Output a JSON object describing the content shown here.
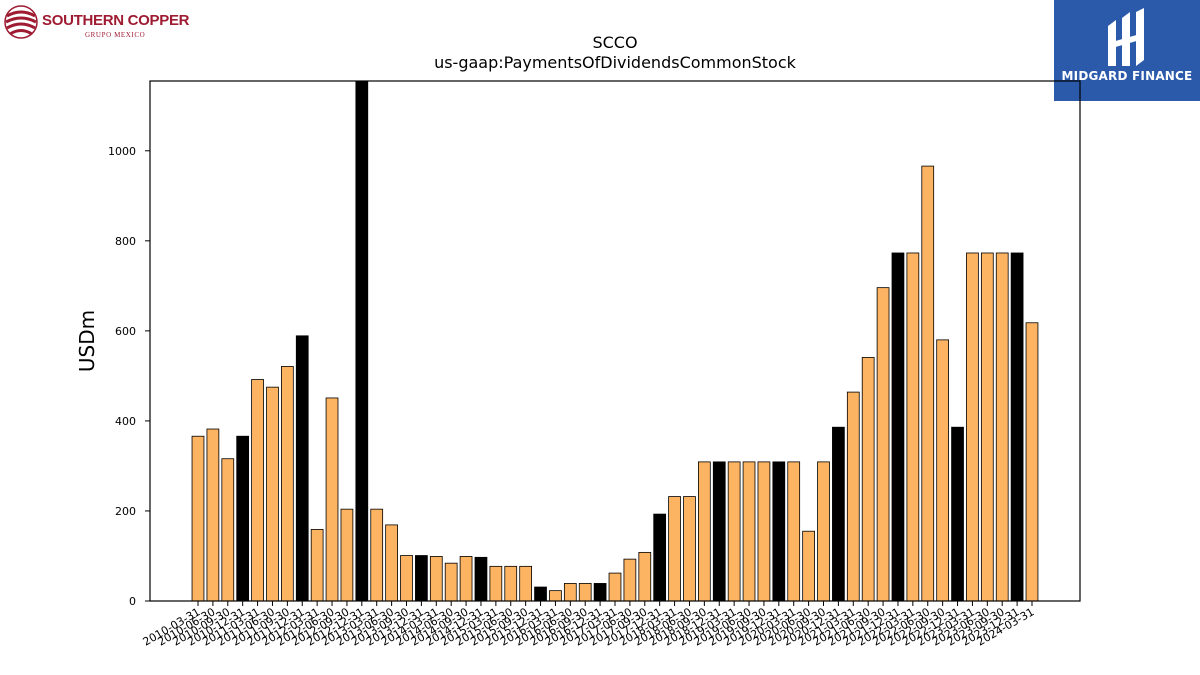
{
  "logos": {
    "left": {
      "name": "SOUTHERN COPPER",
      "subtitle": "GRUPO MEXICO",
      "color": "#9e1b32"
    },
    "right": {
      "name": "MIDGARD FINANCE",
      "background": "#2b5aab"
    }
  },
  "chart_data": {
    "type": "bar",
    "title": "SCCO",
    "subtitle": "us-gaap:PaymentsOfDividendsCommonStock",
    "xlabel": "",
    "ylabel": "USDm",
    "ylim": [
      0,
      1155
    ],
    "yticks": [
      0,
      200,
      400,
      600,
      800,
      1000
    ],
    "grid": false,
    "colors": {
      "default": "#fdb462",
      "highlight": "#000000",
      "edge": "#000000"
    },
    "x": [
      "2010-03-31",
      "2010-06-30",
      "2010-09-30",
      "2010-12-31",
      "2011-03-31",
      "2011-06-30",
      "2011-09-30",
      "2011-12-31",
      "2012-03-31",
      "2012-06-30",
      "2012-09-30",
      "2012-12-31",
      "2013-03-31",
      "2013-06-30",
      "2013-09-30",
      "2013-12-31",
      "2014-03-31",
      "2014-06-30",
      "2014-09-30",
      "2014-12-31",
      "2015-03-31",
      "2015-06-30",
      "2015-09-30",
      "2015-12-31",
      "2016-03-31",
      "2016-06-30",
      "2016-09-30",
      "2016-12-31",
      "2017-03-31",
      "2017-06-30",
      "2017-09-30",
      "2017-12-31",
      "2018-03-31",
      "2018-06-30",
      "2018-09-30",
      "2018-12-31",
      "2019-03-31",
      "2019-06-30",
      "2019-09-30",
      "2019-12-31",
      "2020-03-31",
      "2020-06-30",
      "2020-09-30",
      "2020-12-31",
      "2021-03-31",
      "2021-06-30",
      "2021-09-30",
      "2021-12-31",
      "2022-03-31",
      "2022-06-30",
      "2022-09-30",
      "2022-12-31",
      "2023-03-31",
      "2023-06-30",
      "2023-09-30",
      "2023-12-31",
      "2024-03-31"
    ],
    "values": [
      366,
      382,
      316,
      366,
      492,
      475,
      521,
      589,
      159,
      451,
      204,
      1155,
      204,
      169,
      101,
      101,
      99,
      84,
      99,
      97,
      77,
      77,
      77,
      31,
      23,
      39,
      39,
      39,
      62,
      93,
      108,
      193,
      232,
      232,
      309,
      309,
      309,
      309,
      309,
      309,
      309,
      155,
      309,
      386,
      464,
      541,
      696,
      773,
      773,
      966,
      580,
      386,
      773,
      773,
      773,
      773,
      618
    ],
    "highlight": [
      false,
      false,
      false,
      true,
      false,
      false,
      false,
      true,
      false,
      false,
      false,
      true,
      false,
      false,
      false,
      true,
      false,
      false,
      false,
      true,
      false,
      false,
      false,
      true,
      false,
      false,
      false,
      true,
      false,
      false,
      false,
      true,
      false,
      false,
      false,
      true,
      false,
      false,
      false,
      true,
      false,
      false,
      false,
      true,
      false,
      false,
      false,
      true,
      false,
      false,
      false,
      true,
      false,
      false,
      false,
      true,
      false
    ]
  }
}
